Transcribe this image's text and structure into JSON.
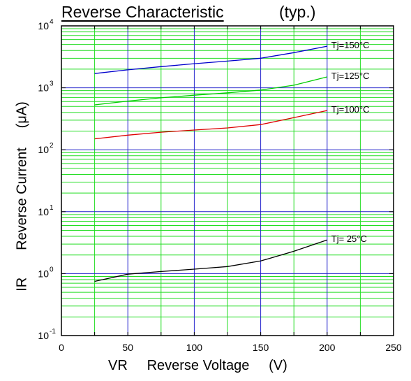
{
  "chart_data": {
    "type": "line",
    "title": "Reverse Characteristic",
    "subtitle": "(typ.)",
    "xlabel": "VR     Reverse Voltage     (V)",
    "ylabel": "IR       Reverse Current     (μA)",
    "xlim": [
      0,
      250
    ],
    "ylim": [
      0.1,
      10000
    ],
    "y_scale": "log",
    "grid": true,
    "x_ticks": [
      "0",
      "50",
      "100",
      "150",
      "200",
      "250"
    ],
    "y_ticks": [
      {
        "base": "10",
        "exp": "-1"
      },
      {
        "base": "10",
        "exp": "0"
      },
      {
        "base": "10",
        "exp": "1"
      },
      {
        "base": "10",
        "exp": "2"
      },
      {
        "base": "10",
        "exp": "3"
      },
      {
        "base": "10",
        "exp": "4"
      }
    ],
    "series": [
      {
        "name": "Tj=150°C",
        "color": "#0000cc",
        "x": [
          25,
          50,
          75,
          100,
          125,
          150,
          175,
          200
        ],
        "y": [
          1700,
          1950,
          2200,
          2450,
          2700,
          3000,
          3700,
          4700
        ]
      },
      {
        "name": "Tj=125°C",
        "color": "#00cc00",
        "x": [
          25,
          50,
          75,
          100,
          125,
          150,
          175,
          200
        ],
        "y": [
          530,
          610,
          690,
          760,
          830,
          920,
          1100,
          1500
        ]
      },
      {
        "name": "Tj=100°C",
        "color": "#dd0000",
        "x": [
          25,
          50,
          75,
          100,
          125,
          150,
          175,
          200
        ],
        "y": [
          150,
          172,
          192,
          208,
          225,
          255,
          330,
          430
        ]
      },
      {
        "name": "Tj= 25°C",
        "color": "#000000",
        "x": [
          25,
          50,
          75,
          100,
          125,
          150,
          175,
          200
        ],
        "y": [
          0.75,
          0.98,
          1.08,
          1.18,
          1.3,
          1.6,
          2.3,
          3.5
        ]
      }
    ]
  }
}
